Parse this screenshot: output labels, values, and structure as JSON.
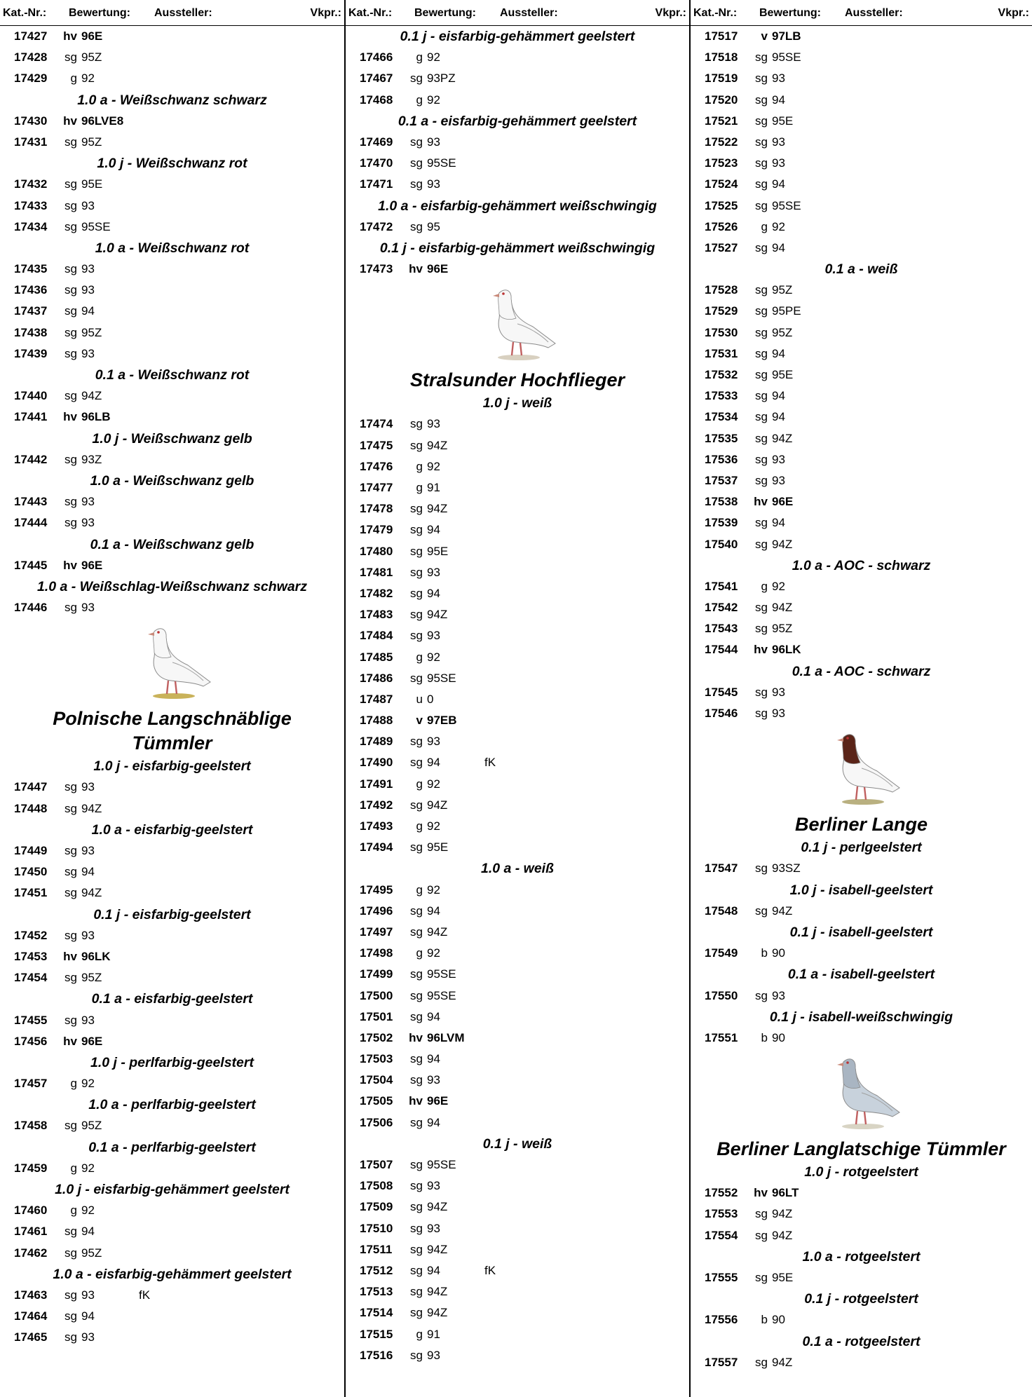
{
  "header": [
    "Kat.-Nr.:",
    "Bewertung:",
    "Aussteller:",
    "Vkpr.:"
  ],
  "columns": [
    {
      "sections": [
        {
          "rows": [
            {
              "n": 17427,
              "g": "hv",
              "s": 96,
              "x": "E"
            },
            {
              "n": 17428,
              "g": "sg",
              "s": 95,
              "x": "Z"
            },
            {
              "n": 17429,
              "g": "g",
              "s": 92
            }
          ]
        },
        {
          "class": "1.0 a - Weißschwanz schwarz",
          "rows": [
            {
              "n": 17430,
              "g": "hv",
              "s": 96,
              "x": "LVE8"
            },
            {
              "n": 17431,
              "g": "sg",
              "s": 95,
              "x": "Z"
            }
          ]
        },
        {
          "class": "1.0 j - Weißschwanz rot",
          "rows": [
            {
              "n": 17432,
              "g": "sg",
              "s": 95,
              "x": "E"
            },
            {
              "n": 17433,
              "g": "sg",
              "s": 93
            },
            {
              "n": 17434,
              "g": "sg",
              "s": 95,
              "x": "SE"
            }
          ]
        },
        {
          "class": "1.0 a - Weißschwanz rot",
          "rows": [
            {
              "n": 17435,
              "g": "sg",
              "s": 93
            },
            {
              "n": 17436,
              "g": "sg",
              "s": 93
            },
            {
              "n": 17437,
              "g": "sg",
              "s": 94
            },
            {
              "n": 17438,
              "g": "sg",
              "s": 95,
              "x": "Z"
            },
            {
              "n": 17439,
              "g": "sg",
              "s": 93
            }
          ]
        },
        {
          "class": "0.1 a - Weißschwanz rot",
          "rows": [
            {
              "n": 17440,
              "g": "sg",
              "s": 94,
              "x": "Z"
            },
            {
              "n": 17441,
              "g": "hv",
              "s": 96,
              "x": "LB"
            }
          ]
        },
        {
          "class": "1.0 j - Weißschwanz gelb",
          "rows": [
            {
              "n": 17442,
              "g": "sg",
              "s": 93,
              "x": "Z"
            }
          ]
        },
        {
          "class": "1.0 a - Weißschwanz gelb",
          "rows": [
            {
              "n": 17443,
              "g": "sg",
              "s": 93
            },
            {
              "n": 17444,
              "g": "sg",
              "s": 93
            }
          ]
        },
        {
          "class": "0.1 a - Weißschwanz gelb",
          "rows": [
            {
              "n": 17445,
              "g": "hv",
              "s": 96,
              "x": "E"
            }
          ]
        },
        {
          "class": "1.0 a - Weißschlag-Weißschwanz schwarz",
          "rows": [
            {
              "n": 17446,
              "g": "sg",
              "s": 93
            }
          ]
        },
        {
          "breed": "Polnische Langschnäblige Tümmler",
          "class": "1.0 j - eisfarbig-geelstert",
          "rows": [
            {
              "n": 17447,
              "g": "sg",
              "s": 93
            },
            {
              "n": 17448,
              "g": "sg",
              "s": 94,
              "x": "Z"
            }
          ]
        },
        {
          "class": "1.0 a - eisfarbig-geelstert",
          "rows": [
            {
              "n": 17449,
              "g": "sg",
              "s": 93
            },
            {
              "n": 17450,
              "g": "sg",
              "s": 94
            },
            {
              "n": 17451,
              "g": "sg",
              "s": 94,
              "x": "Z"
            }
          ]
        },
        {
          "class": "0.1 j - eisfarbig-geelstert",
          "rows": [
            {
              "n": 17452,
              "g": "sg",
              "s": 93
            },
            {
              "n": 17453,
              "g": "hv",
              "s": 96,
              "x": "LK"
            },
            {
              "n": 17454,
              "g": "sg",
              "s": 95,
              "x": "Z"
            }
          ]
        },
        {
          "class": "0.1 a - eisfarbig-geelstert",
          "rows": [
            {
              "n": 17455,
              "g": "sg",
              "s": 93
            },
            {
              "n": 17456,
              "g": "hv",
              "s": 96,
              "x": "E"
            }
          ]
        },
        {
          "class": "1.0 j - perlfarbig-geelstert",
          "rows": [
            {
              "n": 17457,
              "g": "g",
              "s": 92
            }
          ]
        },
        {
          "class": "1.0 a - perlfarbig-geelstert",
          "rows": [
            {
              "n": 17458,
              "g": "sg",
              "s": 95,
              "x": "Z"
            }
          ]
        },
        {
          "class": "0.1 a - perlfarbig-geelstert",
          "rows": [
            {
              "n": 17459,
              "g": "g",
              "s": 92
            }
          ]
        },
        {
          "class": "1.0 j - eisfarbig-gehämmert geelstert",
          "rows": [
            {
              "n": 17460,
              "g": "g",
              "s": 92
            },
            {
              "n": 17461,
              "g": "sg",
              "s": 94
            },
            {
              "n": 17462,
              "g": "sg",
              "s": 95,
              "x": "Z"
            }
          ]
        },
        {
          "class": "1.0 a - eisfarbig-gehämmert geelstert",
          "rows": [
            {
              "n": 17463,
              "g": "sg",
              "s": 93,
              "k": "fK"
            },
            {
              "n": 17464,
              "g": "sg",
              "s": 94
            },
            {
              "n": 17465,
              "g": "sg",
              "s": 93
            }
          ]
        }
      ]
    },
    {
      "sections": [
        {
          "class": "0.1 j - eisfarbig-gehämmert geelstert",
          "rows": [
            {
              "n": 17466,
              "g": "g",
              "s": 92
            },
            {
              "n": 17467,
              "g": "sg",
              "s": 93,
              "x": "PZ"
            },
            {
              "n": 17468,
              "g": "g",
              "s": 92
            }
          ]
        },
        {
          "class": "0.1 a - eisfarbig-gehämmert geelstert",
          "rows": [
            {
              "n": 17469,
              "g": "sg",
              "s": 93
            },
            {
              "n": 17470,
              "g": "sg",
              "s": 95,
              "x": "SE"
            },
            {
              "n": 17471,
              "g": "sg",
              "s": 93
            }
          ]
        },
        {
          "class": "1.0 a - eisfarbig-gehämmert weißschwingig",
          "rows": [
            {
              "n": 17472,
              "g": "sg",
              "s": 95
            }
          ]
        },
        {
          "class": "0.1 j - eisfarbig-gehämmert weißschwingig",
          "rows": [
            {
              "n": 17473,
              "g": "hv",
              "s": 96,
              "x": "E"
            }
          ]
        },
        {
          "breed": "Stralsunder Hochflieger",
          "class": "1.0 j - weiß",
          "rows": [
            {
              "n": 17474,
              "g": "sg",
              "s": 93
            },
            {
              "n": 17475,
              "g": "sg",
              "s": 94,
              "x": "Z"
            },
            {
              "n": 17476,
              "g": "g",
              "s": 92
            },
            {
              "n": 17477,
              "g": "g",
              "s": 91
            },
            {
              "n": 17478,
              "g": "sg",
              "s": 94,
              "x": "Z"
            },
            {
              "n": 17479,
              "g": "sg",
              "s": 94
            },
            {
              "n": 17480,
              "g": "sg",
              "s": 95,
              "x": "E"
            },
            {
              "n": 17481,
              "g": "sg",
              "s": 93
            },
            {
              "n": 17482,
              "g": "sg",
              "s": 94
            },
            {
              "n": 17483,
              "g": "sg",
              "s": 94,
              "x": "Z"
            },
            {
              "n": 17484,
              "g": "sg",
              "s": 93
            },
            {
              "n": 17485,
              "g": "g",
              "s": 92
            },
            {
              "n": 17486,
              "g": "sg",
              "s": 95,
              "x": "SE"
            },
            {
              "n": 17487,
              "g": "u",
              "s": 0
            },
            {
              "n": 17488,
              "g": "v",
              "s": 97,
              "x": "EB"
            },
            {
              "n": 17489,
              "g": "sg",
              "s": 93
            },
            {
              "n": 17490,
              "g": "sg",
              "s": 94,
              "k": "fK"
            },
            {
              "n": 17491,
              "g": "g",
              "s": 92
            },
            {
              "n": 17492,
              "g": "sg",
              "s": 94,
              "x": "Z"
            },
            {
              "n": 17493,
              "g": "g",
              "s": 92
            },
            {
              "n": 17494,
              "g": "sg",
              "s": 95,
              "x": "E"
            }
          ]
        },
        {
          "class": "1.0 a - weiß",
          "rows": [
            {
              "n": 17495,
              "g": "g",
              "s": 92
            },
            {
              "n": 17496,
              "g": "sg",
              "s": 94
            },
            {
              "n": 17497,
              "g": "sg",
              "s": 94,
              "x": "Z"
            },
            {
              "n": 17498,
              "g": "g",
              "s": 92
            },
            {
              "n": 17499,
              "g": "sg",
              "s": 95,
              "x": "SE"
            },
            {
              "n": 17500,
              "g": "sg",
              "s": 95,
              "x": "SE"
            },
            {
              "n": 17501,
              "g": "sg",
              "s": 94
            },
            {
              "n": 17502,
              "g": "hv",
              "s": 96,
              "x": "LVM"
            },
            {
              "n": 17503,
              "g": "sg",
              "s": 94
            },
            {
              "n": 17504,
              "g": "sg",
              "s": 93
            },
            {
              "n": 17505,
              "g": "hv",
              "s": 96,
              "x": "E"
            },
            {
              "n": 17506,
              "g": "sg",
              "s": 94
            }
          ]
        },
        {
          "class": "0.1 j - weiß",
          "rows": [
            {
              "n": 17507,
              "g": "sg",
              "s": 95,
              "x": "SE"
            },
            {
              "n": 17508,
              "g": "sg",
              "s": 93
            },
            {
              "n": 17509,
              "g": "sg",
              "s": 94,
              "x": "Z"
            },
            {
              "n": 17510,
              "g": "sg",
              "s": 93
            },
            {
              "n": 17511,
              "g": "sg",
              "s": 94,
              "x": "Z"
            },
            {
              "n": 17512,
              "g": "sg",
              "s": 94,
              "k": "fK"
            },
            {
              "n": 17513,
              "g": "sg",
              "s": 94,
              "x": "Z"
            },
            {
              "n": 17514,
              "g": "sg",
              "s": 94,
              "x": "Z"
            },
            {
              "n": 17515,
              "g": "g",
              "s": 91
            },
            {
              "n": 17516,
              "g": "sg",
              "s": 93
            }
          ]
        }
      ]
    },
    {
      "sections": [
        {
          "rows": [
            {
              "n": 17517,
              "g": "v",
              "s": 97,
              "x": "LB"
            },
            {
              "n": 17518,
              "g": "sg",
              "s": 95,
              "x": "SE"
            },
            {
              "n": 17519,
              "g": "sg",
              "s": 93
            },
            {
              "n": 17520,
              "g": "sg",
              "s": 94
            },
            {
              "n": 17521,
              "g": "sg",
              "s": 95,
              "x": "E"
            },
            {
              "n": 17522,
              "g": "sg",
              "s": 93
            },
            {
              "n": 17523,
              "g": "sg",
              "s": 93
            },
            {
              "n": 17524,
              "g": "sg",
              "s": 94
            },
            {
              "n": 17525,
              "g": "sg",
              "s": 95,
              "x": "SE"
            },
            {
              "n": 17526,
              "g": "g",
              "s": 92
            },
            {
              "n": 17527,
              "g": "sg",
              "s": 94
            }
          ]
        },
        {
          "class": "0.1 a - weiß",
          "rows": [
            {
              "n": 17528,
              "g": "sg",
              "s": 95,
              "x": "Z"
            },
            {
              "n": 17529,
              "g": "sg",
              "s": 95,
              "x": "PE"
            },
            {
              "n": 17530,
              "g": "sg",
              "s": 95,
              "x": "Z"
            },
            {
              "n": 17531,
              "g": "sg",
              "s": 94
            },
            {
              "n": 17532,
              "g": "sg",
              "s": 95,
              "x": "E"
            },
            {
              "n": 17533,
              "g": "sg",
              "s": 94
            },
            {
              "n": 17534,
              "g": "sg",
              "s": 94
            },
            {
              "n": 17535,
              "g": "sg",
              "s": 94,
              "x": "Z"
            },
            {
              "n": 17536,
              "g": "sg",
              "s": 93
            },
            {
              "n": 17537,
              "g": "sg",
              "s": 93
            },
            {
              "n": 17538,
              "g": "hv",
              "s": 96,
              "x": "E"
            },
            {
              "n": 17539,
              "g": "sg",
              "s": 94
            },
            {
              "n": 17540,
              "g": "sg",
              "s": 94,
              "x": "Z"
            }
          ]
        },
        {
          "class": "1.0 a - AOC - schwarz",
          "rows": [
            {
              "n": 17541,
              "g": "g",
              "s": 92
            },
            {
              "n": 17542,
              "g": "sg",
              "s": 94,
              "x": "Z"
            },
            {
              "n": 17543,
              "g": "sg",
              "s": 95,
              "x": "Z"
            },
            {
              "n": 17544,
              "g": "hv",
              "s": 96,
              "x": "LK"
            }
          ]
        },
        {
          "class": "0.1 a - AOC - schwarz",
          "rows": [
            {
              "n": 17545,
              "g": "sg",
              "s": 93
            },
            {
              "n": 17546,
              "g": "sg",
              "s": 93
            }
          ]
        },
        {
          "breed": "Berliner Lange",
          "class": "0.1 j - perlgeelstert",
          "rows": [
            {
              "n": 17547,
              "g": "sg",
              "s": 93,
              "x": "SZ"
            }
          ]
        },
        {
          "class": "1.0 j - isabell-geelstert",
          "rows": [
            {
              "n": 17548,
              "g": "sg",
              "s": 94,
              "x": "Z"
            }
          ]
        },
        {
          "class": "0.1 j - isabell-geelstert",
          "rows": [
            {
              "n": 17549,
              "g": "b",
              "s": 90
            }
          ]
        },
        {
          "class": "0.1 a - isabell-geelstert",
          "rows": [
            {
              "n": 17550,
              "g": "sg",
              "s": 93
            }
          ]
        },
        {
          "class": "0.1 j - isabell-weißschwingig",
          "rows": [
            {
              "n": 17551,
              "g": "b",
              "s": 90
            }
          ]
        },
        {
          "breed": "Berliner Langlatschige Tümmler",
          "class": "1.0 j - rotgeelstert",
          "rows": [
            {
              "n": 17552,
              "g": "hv",
              "s": 96,
              "x": "LT"
            },
            {
              "n": 17553,
              "g": "sg",
              "s": 94,
              "x": "Z"
            },
            {
              "n": 17554,
              "g": "sg",
              "s": 94,
              "x": "Z"
            }
          ]
        },
        {
          "class": "1.0 a - rotgeelstert",
          "rows": [
            {
              "n": 17555,
              "g": "sg",
              "s": 95,
              "x": "E"
            }
          ]
        },
        {
          "class": "0.1 j - rotgeelstert",
          "rows": [
            {
              "n": 17556,
              "g": "b",
              "s": 90
            }
          ]
        },
        {
          "class": "0.1 a - rotgeelstert",
          "rows": [
            {
              "n": 17557,
              "g": "sg",
              "s": 94,
              "x": "Z"
            }
          ]
        }
      ]
    }
  ]
}
